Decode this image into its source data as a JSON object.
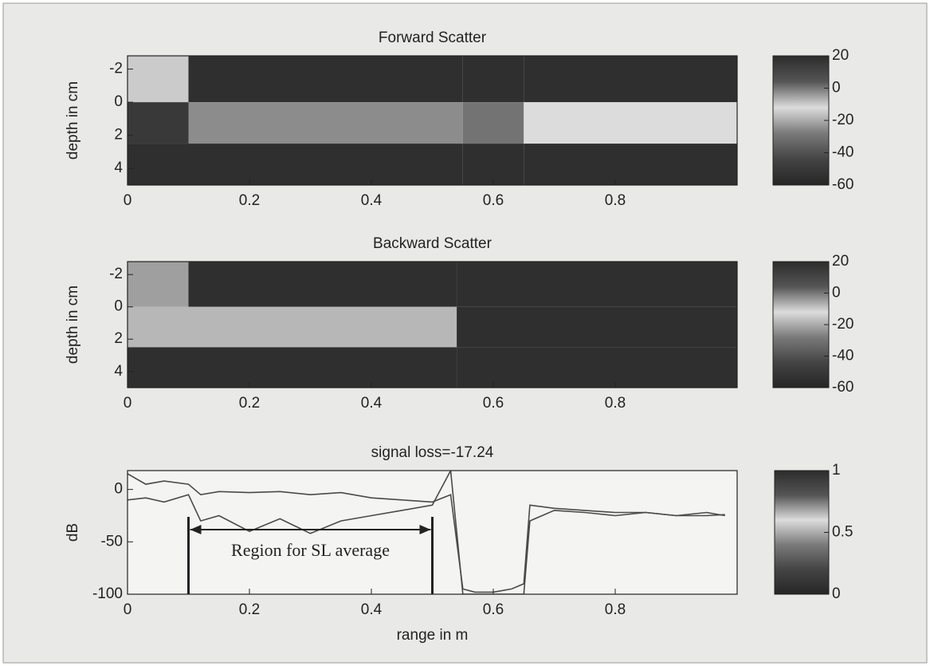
{
  "chart_data": [
    {
      "type": "heatmap",
      "title": "Forward Scatter",
      "ylabel": "depth in cm",
      "x": [
        0,
        0.1,
        0.55,
        0.65,
        1.0
      ],
      "y": [
        -2.8,
        0,
        2.5,
        5
      ],
      "z": [
        [
          -10,
          -55,
          -55,
          -55
        ],
        [
          -50,
          -25,
          -30,
          -12
        ],
        [
          -55,
          -55,
          -55,
          -55
        ]
      ],
      "xlim": [
        0,
        1.0
      ],
      "ylim": [
        -2.8,
        5
      ],
      "y_reversed": true,
      "xticks": [
        0,
        0.2,
        0.4,
        0.6,
        0.8
      ],
      "yticks": [
        -2,
        0,
        2,
        4
      ],
      "colormap": [
        "#262626",
        "#444444",
        "#7a7a7a",
        "#dcdcdc",
        "#555555",
        "#2c2c2c"
      ],
      "colorbar": {
        "clim": [
          -60,
          20
        ],
        "ticks": [
          -60,
          -40,
          -20,
          0,
          20
        ]
      }
    },
    {
      "type": "heatmap",
      "title": "Backward Scatter",
      "ylabel": "depth in cm",
      "x": [
        0,
        0.1,
        0.54,
        1.0
      ],
      "y": [
        -2.8,
        0,
        2.5,
        5
      ],
      "z": [
        [
          -22,
          -55,
          -55
        ],
        [
          -18,
          -18,
          -55
        ],
        [
          -55,
          -55,
          -55
        ]
      ],
      "xlim": [
        0,
        1.0
      ],
      "ylim": [
        -2.8,
        5
      ],
      "y_reversed": true,
      "xticks": [
        0,
        0.2,
        0.4,
        0.6,
        0.8
      ],
      "yticks": [
        -2,
        0,
        2,
        4
      ],
      "colormap": [
        "#262626",
        "#444444",
        "#7a7a7a",
        "#dcdcdc",
        "#555555",
        "#2c2c2c"
      ],
      "colorbar": {
        "clim": [
          -60,
          20
        ],
        "ticks": [
          -60,
          -40,
          -20,
          0,
          20
        ]
      }
    },
    {
      "type": "line",
      "title": "signal loss=-17.24",
      "ylabel": "dB",
      "xlabel": "range in m",
      "x": [
        0,
        0.03,
        0.06,
        0.1,
        0.12,
        0.15,
        0.2,
        0.25,
        0.3,
        0.35,
        0.4,
        0.45,
        0.5,
        0.53,
        0.55,
        0.57,
        0.6,
        0.63,
        0.65,
        0.66,
        0.7,
        0.75,
        0.8,
        0.85,
        0.9,
        0.95,
        0.98
      ],
      "series": [
        {
          "color": "#4a4a4a",
          "values": [
            15,
            5,
            8,
            5,
            -5,
            -2,
            -3,
            -2,
            -5,
            -3,
            -8,
            -10,
            -12,
            -5,
            -95,
            -98,
            -98,
            -95,
            -90,
            -15,
            -18,
            -20,
            -22,
            -22,
            -25,
            -22,
            -25
          ]
        },
        {
          "color": "#4a4a4a",
          "values": [
            -10,
            -8,
            -12,
            -5,
            -30,
            -25,
            -40,
            -28,
            -42,
            -30,
            -25,
            -20,
            -15,
            18,
            -100,
            -100,
            -100,
            -100,
            -100,
            -30,
            -20,
            -22,
            -25,
            -22,
            -25,
            -25,
            -24
          ]
        }
      ],
      "annotation": {
        "text": "Region for SL average",
        "x_start": 0.1,
        "x_end": 0.5
      },
      "xlim": [
        0,
        1.0
      ],
      "ylim": [
        -100,
        18
      ],
      "xticks": [
        0,
        0.2,
        0.4,
        0.6,
        0.8
      ],
      "yticks": [
        -100,
        -50,
        0
      ],
      "colormap": [
        "#262626",
        "#444444",
        "#7a7a7a",
        "#dcdcdc",
        "#555555",
        "#2c2c2c"
      ],
      "colorbar": {
        "clim": [
          0,
          1
        ],
        "ticks": [
          0,
          0.5,
          1
        ]
      }
    }
  ]
}
